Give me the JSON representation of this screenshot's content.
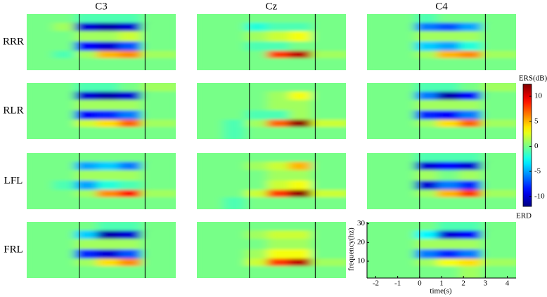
{
  "chart_data": {
    "type": "heatmap-grid",
    "columns": [
      "C3",
      "Cz",
      "C4"
    ],
    "rows": [
      "RRR",
      "RLR",
      "LFL",
      "FRL"
    ],
    "x": [
      -1.5,
      -0.5,
      0.5,
      1.5,
      2.5,
      3.5
    ],
    "y": [
      28,
      24,
      19,
      13,
      9,
      5
    ],
    "xlim": [
      -2.4,
      4.4
    ],
    "ylim": [
      1,
      31
    ],
    "xticks": [
      -2,
      -1,
      0,
      1,
      2,
      3,
      4
    ],
    "yticks": [
      10,
      20,
      30
    ],
    "xlabel": "time(s)",
    "ylabel": "frequency(hz)",
    "event_lines": [
      0,
      3
    ],
    "colorbar": {
      "title": "ERS(dB)",
      "bottom_label": "ERD",
      "lim": [
        -12,
        12.4
      ],
      "ticks": [
        10,
        5,
        0,
        -5,
        -10
      ]
    },
    "panels": [
      [
        [
          0,
          0,
          -1,
          -1,
          -1,
          0
        ],
        [
          0,
          1,
          -10,
          -11,
          -10,
          0
        ],
        [
          0,
          0,
          1,
          1,
          2,
          0
        ],
        [
          0,
          0,
          -9,
          -10,
          -7,
          0
        ],
        [
          0,
          -1,
          1,
          5,
          6,
          1
        ],
        [
          0,
          0,
          0,
          0,
          0,
          0
        ]
      ],
      [
        [
          0,
          0,
          0,
          0,
          0,
          0
        ],
        [
          0,
          0,
          -2,
          -1,
          -1,
          0
        ],
        [
          0,
          0,
          1,
          2,
          3,
          0
        ],
        [
          0,
          0,
          -1,
          -1,
          0,
          0
        ],
        [
          0,
          0,
          0,
          8,
          11,
          1
        ],
        [
          0,
          0,
          0,
          0,
          0,
          0
        ]
      ],
      [
        [
          0,
          0,
          -1,
          0,
          0,
          0
        ],
        [
          0,
          0,
          -6,
          -7,
          -5,
          0
        ],
        [
          0,
          0,
          1,
          1,
          1,
          0
        ],
        [
          0,
          0,
          -4,
          -5,
          -2,
          0
        ],
        [
          0,
          0,
          1,
          5,
          6,
          1
        ],
        [
          0,
          0,
          0,
          0,
          0,
          0
        ]
      ],
      [
        [
          0,
          0,
          -1,
          -1,
          0,
          1
        ],
        [
          0,
          0,
          -10,
          -11,
          -10,
          0
        ],
        [
          0,
          0,
          1,
          1,
          1,
          0
        ],
        [
          0,
          0,
          -9,
          -8,
          -6,
          0
        ],
        [
          0,
          0,
          2,
          4,
          7,
          1
        ],
        [
          0,
          0,
          0,
          0,
          0,
          0
        ]
      ],
      [
        [
          0,
          0,
          0,
          0,
          0,
          0
        ],
        [
          0,
          0,
          0,
          1,
          3,
          0
        ],
        [
          0,
          0,
          0,
          1,
          1,
          0
        ],
        [
          0,
          0,
          -1,
          -1,
          1,
          0
        ],
        [
          0,
          -1,
          1,
          7,
          12,
          2
        ],
        [
          0,
          -1,
          0,
          0,
          0,
          0
        ]
      ],
      [
        [
          0,
          0,
          -1,
          -1,
          0,
          1
        ],
        [
          0,
          0,
          -6,
          -11,
          -9,
          0
        ],
        [
          0,
          0,
          1,
          1,
          1,
          0
        ],
        [
          0,
          0,
          -8,
          -9,
          -6,
          0
        ],
        [
          0,
          0,
          1,
          4,
          7,
          1
        ],
        [
          0,
          0,
          0,
          0,
          0,
          0
        ]
      ],
      [
        [
          0,
          0,
          0,
          0,
          0,
          0
        ],
        [
          0,
          0,
          -5,
          -4,
          -6,
          0
        ],
        [
          0,
          0,
          1,
          1,
          1,
          0
        ],
        [
          0,
          -1,
          -5,
          -2,
          -1,
          0
        ],
        [
          0,
          0,
          1,
          6,
          9,
          1
        ],
        [
          0,
          0,
          0,
          0,
          0,
          0
        ]
      ],
      [
        [
          0,
          0,
          0,
          0,
          0,
          0
        ],
        [
          0,
          0,
          1,
          2,
          5,
          0
        ],
        [
          0,
          0,
          0,
          1,
          1,
          0
        ],
        [
          0,
          0,
          0,
          2,
          3,
          0
        ],
        [
          0,
          0,
          2,
          8,
          12,
          2
        ],
        [
          0,
          -1,
          0,
          0,
          0,
          0
        ]
      ],
      [
        [
          0,
          0,
          -1,
          -1,
          -1,
          0
        ],
        [
          0,
          0,
          -10,
          -9,
          -10,
          0
        ],
        [
          0,
          0,
          1,
          0,
          1,
          0
        ],
        [
          0,
          0,
          -10,
          -6,
          -8,
          0
        ],
        [
          0,
          0,
          1,
          5,
          8,
          1
        ],
        [
          0,
          0,
          0,
          0,
          0,
          0
        ]
      ],
      [
        [
          0,
          0,
          0,
          -1,
          -1,
          0
        ],
        [
          0,
          0,
          -4,
          -11,
          -10,
          0
        ],
        [
          0,
          0,
          1,
          1,
          1,
          0
        ],
        [
          0,
          0,
          -8,
          -10,
          -7,
          0
        ],
        [
          0,
          0,
          1,
          4,
          6,
          0
        ],
        [
          0,
          0,
          0,
          0,
          0,
          0
        ]
      ],
      [
        [
          0,
          0,
          0,
          0,
          0,
          0
        ],
        [
          0,
          0,
          1,
          2,
          2,
          0
        ],
        [
          0,
          0,
          0,
          1,
          1,
          0
        ],
        [
          0,
          0,
          1,
          3,
          3,
          0
        ],
        [
          0,
          0,
          2,
          8,
          11,
          1
        ],
        [
          0,
          0,
          0,
          0,
          0,
          0
        ]
      ],
      [
        [
          0,
          0,
          0,
          -1,
          -1,
          0
        ],
        [
          0,
          0,
          -3,
          -10,
          -9,
          0
        ],
        [
          0,
          0,
          1,
          1,
          1,
          0
        ],
        [
          0,
          0,
          -6,
          -8,
          -6,
          0
        ],
        [
          0,
          0,
          1,
          3,
          4,
          1
        ],
        [
          0,
          0,
          0,
          0,
          1,
          0
        ]
      ]
    ]
  }
}
